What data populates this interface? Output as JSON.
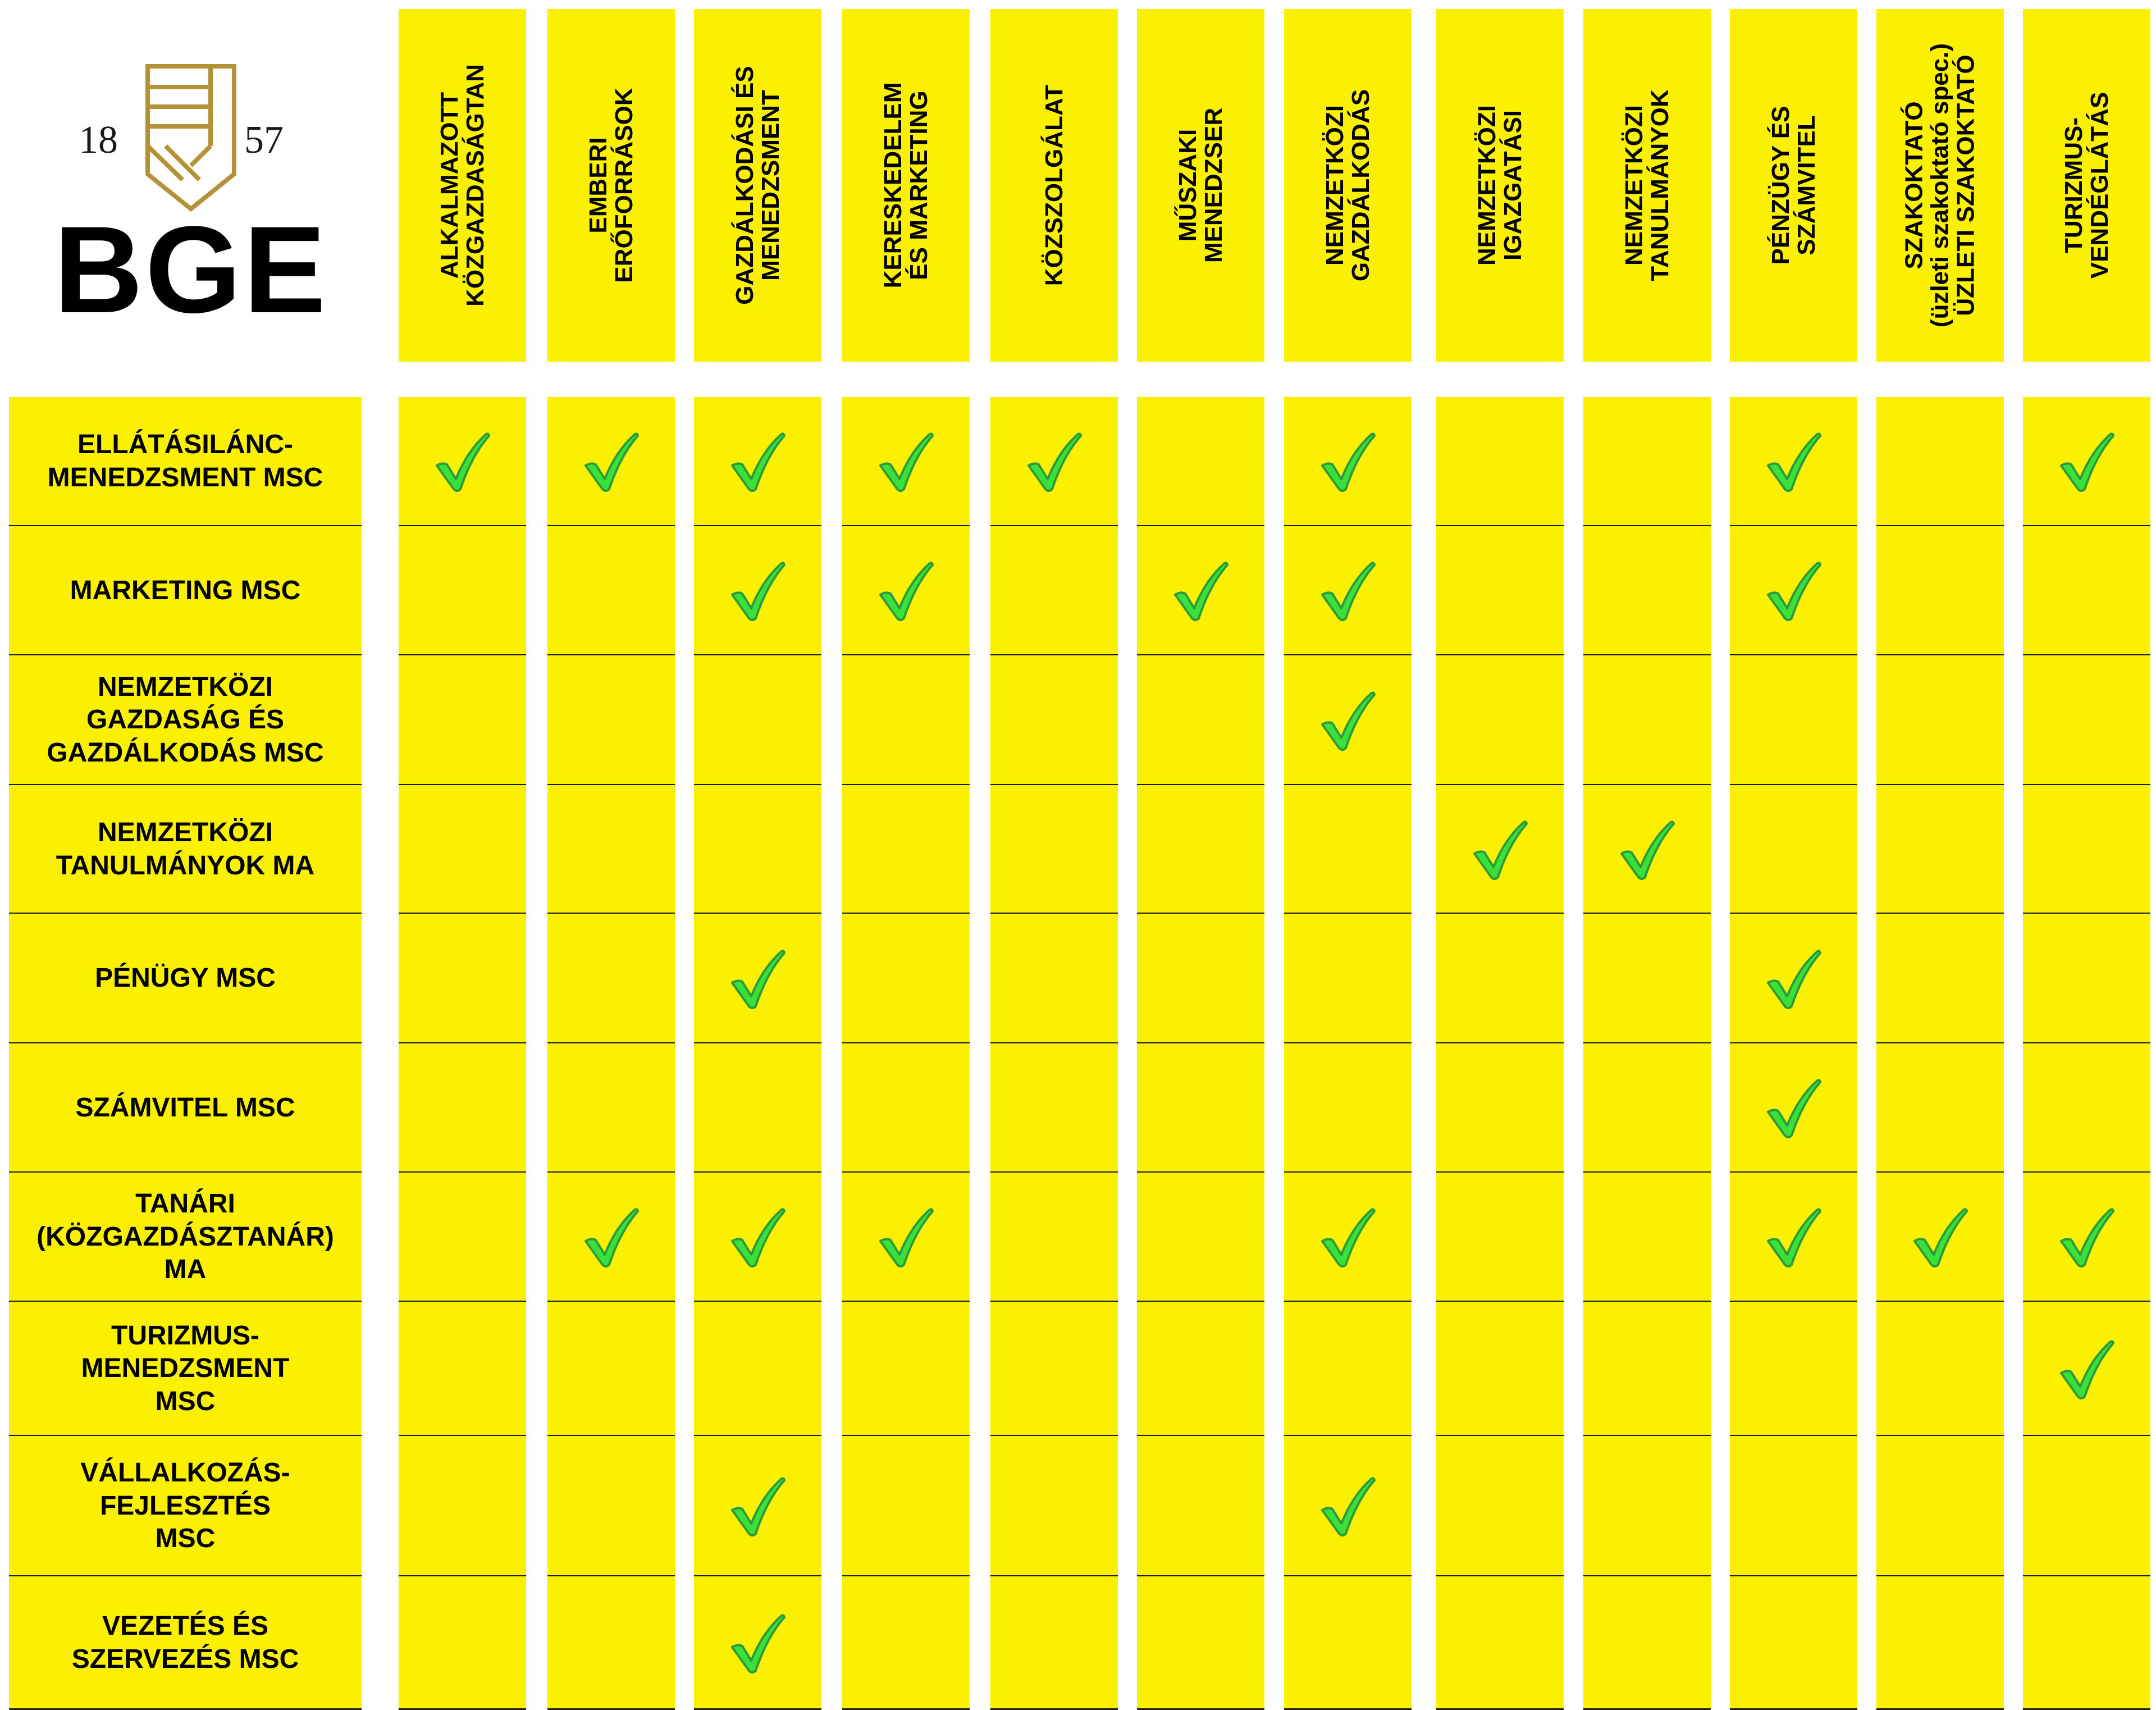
{
  "logo": {
    "year_left": "18",
    "year_right": "57",
    "name": "BGE",
    "mark_color": "#b59238"
  },
  "columns": [
    {
      "lines": [
        "ALKALMAZOTT",
        "KÖZGAZDASÁGTAN"
      ]
    },
    {
      "lines": [
        "EMBERI",
        "ERŐFORRÁSOK"
      ]
    },
    {
      "lines": [
        "GAZDÁLKODÁSI ÉS",
        "MENEDZSMENT"
      ]
    },
    {
      "lines": [
        "KERESKEDELEM",
        "ÉS MARKETING"
      ]
    },
    {
      "lines": [
        "KÖZSZOLGÁLAT"
      ]
    },
    {
      "lines": [
        "MŰSZAKI",
        "MENEDZSER"
      ]
    },
    {
      "lines": [
        "NEMZETKÖZI",
        "GAZDÁLKODÁS"
      ]
    },
    {
      "lines": [
        "NEMZETKÖZI",
        "IGAZGATÁSI"
      ]
    },
    {
      "lines": [
        "NEMZETKÖZI",
        "TANULMÁNYOK"
      ]
    },
    {
      "lines": [
        "PÉNZÜGY ÉS",
        "SZÁMVITEL"
      ]
    },
    {
      "lines": [
        "SZAKOKTATÓ",
        "(üzleti szakoktató spec.)",
        "ÜZLETI SZAKOKTATÓ"
      ]
    },
    {
      "lines": [
        "TURIZMUS-",
        "VENDÉGLÁTÁS"
      ]
    }
  ],
  "rows": [
    {
      "lines": [
        "ELLÁTÁSILÁNC-",
        "MENEDZSMENT MSC"
      ],
      "checks": [
        1,
        1,
        1,
        1,
        1,
        0,
        1,
        0,
        0,
        1,
        0,
        1
      ]
    },
    {
      "lines": [
        "MARKETING MSC"
      ],
      "checks": [
        0,
        0,
        1,
        1,
        0,
        1,
        1,
        0,
        0,
        1,
        0,
        0
      ]
    },
    {
      "lines": [
        "NEMZETKÖZI",
        "GAZDASÁG ÉS",
        "GAZDÁLKODÁS MSC"
      ],
      "checks": [
        0,
        0,
        0,
        0,
        0,
        0,
        1,
        0,
        0,
        0,
        0,
        0
      ]
    },
    {
      "lines": [
        "NEMZETKÖZI",
        "TANULMÁNYOK MA"
      ],
      "checks": [
        0,
        0,
        0,
        0,
        0,
        0,
        0,
        1,
        1,
        0,
        0,
        0
      ]
    },
    {
      "lines": [
        "PÉNÜGY MSC"
      ],
      "checks": [
        0,
        0,
        1,
        0,
        0,
        0,
        0,
        0,
        0,
        1,
        0,
        0
      ]
    },
    {
      "lines": [
        "SZÁMVITEL MSC"
      ],
      "checks": [
        0,
        0,
        0,
        0,
        0,
        0,
        0,
        0,
        0,
        1,
        0,
        0
      ]
    },
    {
      "lines": [
        "TANÁRI",
        "(KÖZGAZDÁSZTANÁR)",
        "MA"
      ],
      "checks": [
        0,
        1,
        1,
        1,
        0,
        0,
        1,
        0,
        0,
        1,
        1,
        1
      ]
    },
    {
      "lines": [
        "TURIZMUS-",
        "MENEDZSMENT",
        "MSC"
      ],
      "checks": [
        0,
        0,
        0,
        0,
        0,
        0,
        0,
        0,
        0,
        0,
        0,
        1
      ]
    },
    {
      "lines": [
        "VÁLLALKOZÁS-",
        "FEJLESZTÉS",
        "MSC"
      ],
      "checks": [
        0,
        0,
        1,
        0,
        0,
        0,
        1,
        0,
        0,
        0,
        0,
        0
      ]
    },
    {
      "lines": [
        "VEZETÉS ÉS",
        "SZERVEZÉS MSC"
      ],
      "checks": [
        0,
        0,
        1,
        0,
        0,
        0,
        0,
        0,
        0,
        0,
        0,
        0
      ]
    }
  ],
  "colors": {
    "cell_bg": "#faf000",
    "check_fill": "#3be03b",
    "check_outline": "#2a9a3a",
    "divider": "#1a1a1a"
  }
}
